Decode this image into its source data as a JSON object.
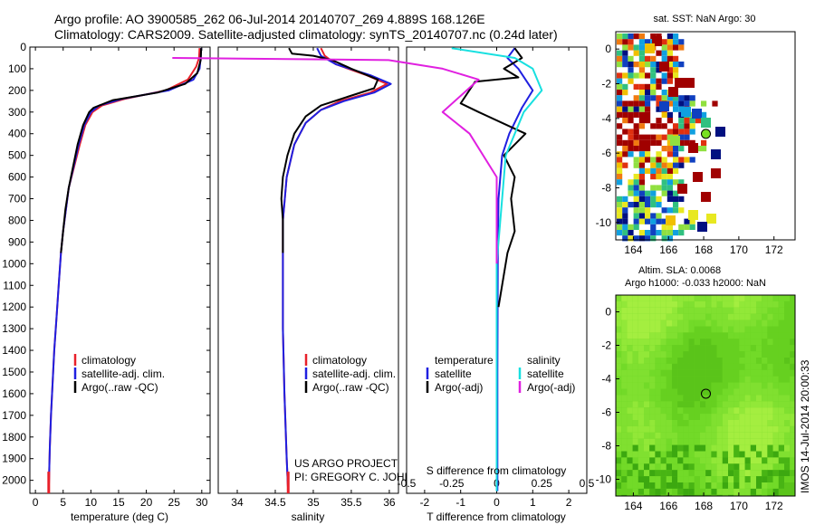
{
  "header": {
    "title_line1": "Argo profile: AO 3900585_262 06-Jul-2014 20140707_269 4.889S 168.126E",
    "title_line2": "Climatology: CARS2009. Satellite-adjusted climatology: synTS_20140707.nc (0.24d later)"
  },
  "side_label": "IMOS 14-Jul-2014 20:00:33",
  "project": {
    "line1": "US ARGO PROJECT",
    "line2": "PI: GREGORY C. JOHNSON"
  },
  "depth_ticks": [
    0,
    100,
    200,
    300,
    400,
    500,
    600,
    700,
    800,
    900,
    1000,
    1100,
    1200,
    1300,
    1400,
    1500,
    1600,
    1700,
    1800,
    1900,
    2000
  ],
  "colors": {
    "climatology": "#e8202a",
    "satellite": "#1f1fe0",
    "argo": "#000000",
    "sal_satellite": "#18e0e0",
    "sal_argo": "#e020e0",
    "map_marker": "#78e020"
  },
  "chart_data": [
    {
      "id": "temperature",
      "type": "line",
      "xlabel": "temperature (deg C)",
      "ylabel": "",
      "xlim": [
        -1,
        31.5
      ],
      "ylim": [
        2060,
        0
      ],
      "xticks": [
        0,
        5,
        10,
        15,
        20,
        25,
        30
      ],
      "xtick_labels": [
        "0",
        "5",
        "10",
        "15",
        "20",
        "25",
        "30"
      ],
      "legend": [
        "climatology",
        "satellite-adj. clim.",
        "Argo(..raw -QC)"
      ],
      "legend_position": "lower-center",
      "series": [
        {
          "name": "climatology",
          "color": "#e8202a",
          "points": [
            [
              29.6,
              5
            ],
            [
              29.5,
              50
            ],
            [
              29.0,
              90
            ],
            [
              27.5,
              150
            ],
            [
              23.5,
              200
            ],
            [
              16.0,
              240
            ],
            [
              12.0,
              270
            ],
            [
              10.3,
              300
            ],
            [
              9.0,
              360
            ],
            [
              8.0,
              450
            ],
            [
              7.0,
              550
            ],
            [
              6.0,
              650
            ],
            [
              5.5,
              750
            ],
            [
              5.0,
              850
            ],
            [
              4.6,
              950
            ],
            [
              4.2,
              1100
            ],
            [
              3.8,
              1250
            ],
            [
              3.4,
              1400
            ],
            [
              3.1,
              1550
            ],
            [
              2.8,
              1700
            ],
            [
              2.6,
              1850
            ],
            [
              2.4,
              2050
            ]
          ]
        },
        {
          "name": "satellite-adj. clim.",
          "color": "#1f1fe0",
          "points": [
            [
              29.9,
              5
            ],
            [
              29.8,
              50
            ],
            [
              29.6,
              100
            ],
            [
              28.5,
              150
            ],
            [
              24.0,
              200
            ],
            [
              15.5,
              240
            ],
            [
              11.5,
              270
            ],
            [
              10.0,
              300
            ],
            [
              8.8,
              360
            ],
            [
              7.8,
              450
            ],
            [
              6.9,
              550
            ],
            [
              6.0,
              650
            ],
            [
              5.5,
              750
            ],
            [
              5.0,
              850
            ],
            [
              4.6,
              950
            ],
            [
              4.2,
              1100
            ],
            [
              3.8,
              1250
            ],
            [
              3.4,
              1400
            ],
            [
              3.1,
              1550
            ],
            [
              2.8,
              1700
            ],
            [
              2.6,
              1850
            ],
            [
              2.4,
              2050
            ]
          ]
        },
        {
          "name": "Argo(..raw -QC)",
          "color": "#000000",
          "points": [
            [
              29.9,
              5
            ],
            [
              29.8,
              60
            ],
            [
              29.2,
              120
            ],
            [
              27.0,
              170
            ],
            [
              22.0,
              210
            ],
            [
              14.0,
              245
            ],
            [
              10.5,
              280
            ],
            [
              9.7,
              300
            ],
            [
              8.6,
              360
            ],
            [
              7.6,
              450
            ],
            [
              6.8,
              550
            ],
            [
              6.0,
              650
            ],
            [
              5.4,
              750
            ],
            [
              5.0,
              850
            ],
            [
              4.6,
              950
            ]
          ]
        }
      ]
    },
    {
      "id": "salinity",
      "type": "line",
      "xlabel": "salinity",
      "ylabel": "",
      "xlim": [
        33.75,
        36.12
      ],
      "ylim": [
        2060,
        0
      ],
      "xticks": [
        34,
        34.5,
        35,
        35.5,
        36
      ],
      "xtick_labels": [
        "34",
        "34.5",
        "35",
        "35.5",
        "36"
      ],
      "legend": [
        "climatology",
        "satellite-adj. clim.",
        "Argo(..raw -QC)"
      ],
      "legend_position": "lower-right",
      "series": [
        {
          "name": "climatology",
          "color": "#e8202a",
          "points": [
            [
              35.1,
              5
            ],
            [
              35.15,
              40
            ],
            [
              35.3,
              80
            ],
            [
              35.7,
              130
            ],
            [
              35.97,
              170
            ],
            [
              35.75,
              210
            ],
            [
              35.35,
              250
            ],
            [
              35.1,
              290
            ],
            [
              34.9,
              350
            ],
            [
              34.75,
              450
            ],
            [
              34.65,
              600
            ],
            [
              34.6,
              800
            ],
            [
              34.6,
              1000
            ],
            [
              34.6,
              1300
            ],
            [
              34.62,
              1600
            ],
            [
              34.65,
              1900
            ],
            [
              34.67,
              2050
            ]
          ]
        },
        {
          "name": "satellite-adj. clim.",
          "color": "#1f1fe0",
          "points": [
            [
              35.05,
              5
            ],
            [
              35.1,
              40
            ],
            [
              35.3,
              80
            ],
            [
              35.75,
              130
            ],
            [
              36.02,
              170
            ],
            [
              35.8,
              210
            ],
            [
              35.4,
              250
            ],
            [
              35.1,
              290
            ],
            [
              34.9,
              350
            ],
            [
              34.75,
              450
            ],
            [
              34.65,
              600
            ],
            [
              34.6,
              800
            ],
            [
              34.6,
              1000
            ],
            [
              34.6,
              1300
            ],
            [
              34.62,
              1600
            ],
            [
              34.65,
              1900
            ],
            [
              34.67,
              2050
            ]
          ]
        },
        {
          "name": "Argo(..raw -QC)",
          "color": "#000000",
          "points": [
            [
              34.68,
              5
            ],
            [
              34.72,
              30
            ],
            [
              35.0,
              40
            ],
            [
              35.25,
              60
            ],
            [
              35.5,
              100
            ],
            [
              35.85,
              150
            ],
            [
              35.8,
              190
            ],
            [
              35.45,
              230
            ],
            [
              35.1,
              270
            ],
            [
              34.9,
              320
            ],
            [
              34.75,
              400
            ],
            [
              34.66,
              500
            ],
            [
              34.6,
              600
            ],
            [
              34.58,
              700
            ],
            [
              34.6,
              800
            ],
            [
              34.6,
              900
            ],
            [
              34.6,
              950
            ]
          ]
        }
      ]
    },
    {
      "id": "difference",
      "type": "line",
      "xlabel": "T difference from climatology",
      "xlabel_top": "S difference from climatology",
      "ylabel": "",
      "xlim": [
        -2.5,
        2.5
      ],
      "ylim": [
        2060,
        0
      ],
      "xticks": [
        -2,
        -1,
        0,
        1,
        2
      ],
      "xtick_labels": [
        "-2",
        "-1",
        "0",
        "1",
        "2"
      ],
      "s_xticks": [
        -0.5,
        -0.25,
        0,
        0.25,
        0.5
      ],
      "s_xtick_labels": [
        "-0.5",
        "-0.25",
        "0",
        "0.25",
        "0.5"
      ],
      "legend": [
        "temperature",
        "satellite",
        "Argo(-adj)",
        "salinity",
        "satellite",
        "Argo(-adj)"
      ],
      "legend_position": "lower-center",
      "series": [
        {
          "name": "temperature satellite",
          "color": "#1f1fe0",
          "points": [
            [
              0.5,
              5
            ],
            [
              0.3,
              50
            ],
            [
              0.6,
              100
            ],
            [
              1.0,
              200
            ],
            [
              0.7,
              280
            ],
            [
              0.35,
              400
            ],
            [
              0.15,
              500
            ],
            [
              0.05,
              700
            ],
            [
              0.03,
              1000
            ],
            [
              0.02,
              1500
            ],
            [
              0.02,
              2050
            ]
          ]
        },
        {
          "name": "temperature Argo(-adj)",
          "color": "#000000",
          "points": [
            [
              0.5,
              5
            ],
            [
              0.7,
              50
            ],
            [
              0.2,
              100
            ],
            [
              0.6,
              140
            ],
            [
              -0.6,
              160
            ],
            [
              -1.0,
              260
            ],
            [
              -0.5,
              300
            ],
            [
              0.8,
              400
            ],
            [
              0.2,
              500
            ],
            [
              0.5,
              600
            ],
            [
              0.4,
              700
            ],
            [
              0.5,
              850
            ],
            [
              0.3,
              950
            ],
            [
              0.05,
              1200
            ]
          ]
        },
        {
          "name": "salinity satellite",
          "color": "#18e0e0",
          "points": [
            [
              -0.25,
              5
            ],
            [
              0.1,
              50
            ],
            [
              0.2,
              100
            ],
            [
              0.25,
              200
            ],
            [
              0.15,
              300
            ],
            [
              0.05,
              500
            ],
            [
              0.0,
              1000
            ],
            [
              0.0,
              2050
            ]
          ]
        },
        {
          "name": "salinity Argo(-adj)",
          "color": "#e020e0",
          "points": [
            [
              -1.8,
              50
            ],
            [
              -0.6,
              60
            ],
            [
              -0.3,
              100
            ],
            [
              -0.1,
              150
            ],
            [
              -0.3,
              300
            ],
            [
              -0.15,
              400
            ],
            [
              0.0,
              600
            ],
            [
              0.0,
              900
            ],
            [
              0.0,
              1000
            ]
          ]
        }
      ]
    },
    {
      "id": "sst_map",
      "type": "heatmap",
      "title": "sat. SST: NaN  Argo: 30",
      "xlim": [
        163,
        173.2
      ],
      "ylim": [
        -11,
        1
      ],
      "xticks": [
        164,
        166,
        168,
        170,
        172
      ],
      "yticks": [
        0,
        -2,
        -4,
        -6,
        -8,
        -10
      ],
      "argo_position": {
        "lon": 168.126,
        "lat": -4.889
      }
    },
    {
      "id": "sla_map",
      "type": "heatmap",
      "title_line1": "Altim. SLA: 0.0068",
      "title_line2": "Argo h1000: -0.033 h2000: NaN",
      "xlim": [
        163,
        173.2
      ],
      "ylim": [
        -11,
        1
      ],
      "xticks": [
        164,
        166,
        168,
        170,
        172
      ],
      "yticks": [
        0,
        -2,
        -4,
        -6,
        -8,
        -10
      ],
      "argo_position": {
        "lon": 168.126,
        "lat": -4.889
      }
    }
  ]
}
